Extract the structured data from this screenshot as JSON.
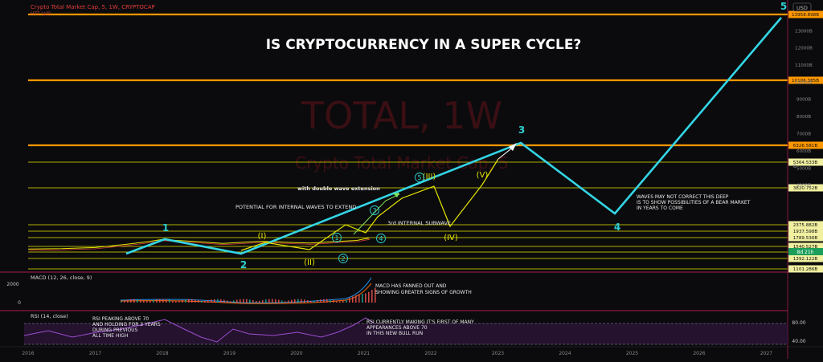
{
  "header": {
    "symbol_line": "Crypto Total Market Cap, 5, 1W, CRYPTOCAP",
    "indicator_hint": "HTF (all)",
    "currency_badge": "USD"
  },
  "headline": "IS CRYPTOCURRENCY IN A SUPER CYCLE?",
  "watermark": {
    "big": "TOTAL, 1W",
    "small": "Crypto Total Market Cap, 5"
  },
  "chart_data": {
    "type": "line",
    "title": "Crypto Total Market Cap, 5, 1W, CRYPTOCAP",
    "x_ticks": [
      "2016",
      "2017",
      "2018",
      "2019",
      "2020",
      "2021",
      "2022",
      "2023",
      "2024",
      "2025",
      "2026",
      "2027"
    ],
    "y_axis_labels": [
      "13000B",
      "12000B",
      "11000B",
      "10000B",
      "9000B",
      "8000B",
      "7000B",
      "6000B",
      "5000B",
      "4000B"
    ],
    "price_levels": [
      {
        "label": "13958.898B",
        "value": 13958.898,
        "color": "#ff9800",
        "bold": true
      },
      {
        "label": "10106.385B",
        "value": 10106.385,
        "color": "#ff9800",
        "bold": true
      },
      {
        "label": "6326.581B",
        "value": 6326.581,
        "color": "#ff9800",
        "bold": true
      },
      {
        "label": "5364.533B",
        "value": 5364.533,
        "color": "#e6e600",
        "bold": false
      },
      {
        "label": "3820.752B",
        "value": 3820.752,
        "color": "#e6e600",
        "bold": false
      },
      {
        "label": "2375.882B",
        "value": 2375.882,
        "color": "#e6e600",
        "bold": false
      },
      {
        "label": "1937.598B",
        "value": 1937.598,
        "color": "#e6e600",
        "bold": false
      },
      {
        "label": "1789.536B",
        "value": 1789.536,
        "color": "#e6e600",
        "bold": false
      },
      {
        "label": "1540.527B",
        "value": 1540.527,
        "color": "#e6e600",
        "bold": false
      },
      {
        "label": "1493.498B",
        "value": 1493.498,
        "color": "#e6e600",
        "bold": false
      },
      {
        "label": "1392.122B",
        "value": 1392.122,
        "color": "#e6e600",
        "bold": false
      },
      {
        "label": "1101.286B",
        "value": 1101.286,
        "color": "#e6e600",
        "bold": false
      }
    ],
    "current_price_badge": "8d 21h",
    "price_series": {
      "name": "Total Market Cap",
      "x": [
        2016.0,
        2016.5,
        2017.0,
        2017.5,
        2017.8,
        2018.0,
        2018.2,
        2018.5,
        2018.9,
        2019.3,
        2019.5,
        2019.9,
        2020.2,
        2020.6,
        2020.9,
        2021.0,
        2021.08
      ],
      "y": [
        10,
        12,
        20,
        100,
        300,
        780,
        500,
        300,
        130,
        250,
        330,
        200,
        150,
        300,
        500,
        900,
        1300
      ]
    },
    "elliott_waves": [
      {
        "label": "1",
        "x": 2018.0,
        "color": "#2fd0d0"
      },
      {
        "label": "2",
        "x": 2019.2,
        "color": "#2fd0d0"
      },
      {
        "label": "3",
        "x": 2023.3,
        "color": "#2fd0d0"
      },
      {
        "label": "4",
        "x": 2024.8,
        "color": "#2fd0d0"
      },
      {
        "label": "5",
        "x": 2027.2,
        "color": "#2fd0d0"
      }
    ],
    "sub_waves": [
      {
        "label": "(I)",
        "x": 2018.5,
        "color": "#e6e600"
      },
      {
        "label": "(II)",
        "x": 2020.2,
        "color": "#e6e600"
      },
      {
        "label": "(III)",
        "x": 2021.8,
        "color": "#e6e600"
      },
      {
        "label": "(IV)",
        "x": 2022.3,
        "color": "#e6e600"
      },
      {
        "label": "(V)",
        "x": 2022.8,
        "color": "#e6e600"
      },
      {
        "label": "1",
        "x": 2020.6,
        "color": "#2fd0d0",
        "circle": true
      },
      {
        "label": "2",
        "x": 2020.7,
        "color": "#2fd0d0",
        "circle": true
      },
      {
        "label": "3",
        "x": 2021.1,
        "color": "#2fd0d0",
        "circle": true
      },
      {
        "label": "4",
        "x": 2021.3,
        "color": "#2fd0d0",
        "circle": true
      },
      {
        "label": "5",
        "x": 2021.6,
        "color": "#2fd0d0",
        "circle": true
      }
    ],
    "annotations": [
      "with double wave extension",
      "POTENTIAL FOR INTERNAL WAVES TO EXTEND",
      "3rd INTERNAL SUBWAVE",
      "WAVES MAY NOT CORRECT THIS DEEP",
      "IS TO SHOW POSSIBILITIES OF A BEAR MARKET",
      "IN YEARS TO COME"
    ],
    "macd": {
      "title": "MACD (12, 26, close, 9)",
      "axis_labels": [
        "2000",
        "0"
      ],
      "note": [
        "MACD HAS FANNED OUT AND",
        "SHOWING GREATER SIGNS OF GROWTH"
      ]
    },
    "rsi": {
      "title": "RSI (14, close)",
      "axis_labels": [
        "80.00",
        "40.00"
      ],
      "note_left": [
        "RSI PEAKING ABOVE 70",
        "AND HOLDING FOR 2 YEARS",
        "DURING PREVIOUS",
        "ALL TIME HIGH"
      ],
      "note_right": [
        "RSI CURRENTLY MAKING IT'S FIRST OF MANY",
        "APPEARANCES ABOVE 70",
        "IN THIS NEW BULL RUN"
      ]
    }
  }
}
